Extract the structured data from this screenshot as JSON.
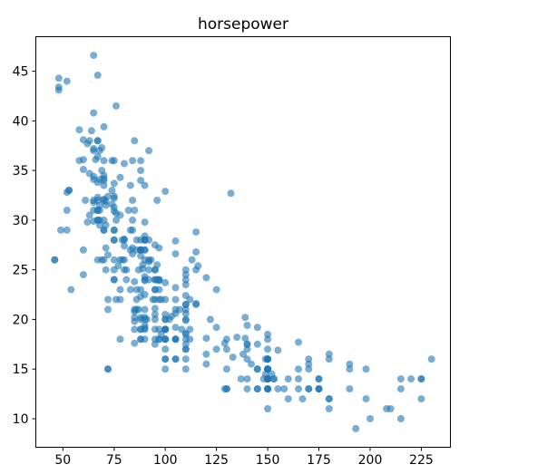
{
  "figure": {
    "title": "horsepower"
  },
  "chart_data": {
    "type": "scatter",
    "title": "horsepower",
    "xlabel": "",
    "ylabel": "",
    "xlim": [
      36.8,
      239.2
    ],
    "ylim": [
      7.12,
      48.48
    ],
    "x_ticks": [
      50,
      75,
      100,
      125,
      150,
      175,
      200,
      225
    ],
    "y_ticks": [
      10,
      15,
      20,
      25,
      30,
      35,
      40,
      45
    ],
    "grid": false,
    "legend_position": "none",
    "marker": {
      "color": "#1f77b4",
      "opacity": 0.6,
      "radius": 4
    },
    "points": [
      [
        130,
        18
      ],
      [
        165,
        15
      ],
      [
        150,
        18
      ],
      [
        150,
        16
      ],
      [
        140,
        17
      ],
      [
        198,
        15
      ],
      [
        220,
        14
      ],
      [
        215,
        14
      ],
      [
        225,
        14
      ],
      [
        190,
        15
      ],
      [
        170,
        15
      ],
      [
        160,
        14
      ],
      [
        150,
        15
      ],
      [
        225,
        14
      ],
      [
        95,
        24
      ],
      [
        95,
        22
      ],
      [
        97,
        18
      ],
      [
        85,
        21
      ],
      [
        88,
        27
      ],
      [
        46,
        26
      ],
      [
        87,
        25
      ],
      [
        90,
        24
      ],
      [
        95,
        25
      ],
      [
        113,
        26
      ],
      [
        90,
        21
      ],
      [
        215,
        10
      ],
      [
        200,
        10
      ],
      [
        210,
        11
      ],
      [
        193,
        9
      ],
      [
        88,
        27
      ],
      [
        90,
        28
      ],
      [
        95,
        25
      ],
      [
        100,
        19
      ],
      [
        105,
        16
      ],
      [
        100,
        17
      ],
      [
        88,
        19
      ],
      [
        100,
        18
      ],
      [
        165,
        14
      ],
      [
        175,
        14
      ],
      [
        153,
        14
      ],
      [
        150,
        14
      ],
      [
        180,
        12
      ],
      [
        170,
        13
      ],
      [
        175,
        13
      ],
      [
        110,
        18
      ],
      [
        72,
        22
      ],
      [
        100,
        19
      ],
      [
        88,
        18
      ],
      [
        86,
        23
      ],
      [
        90,
        28
      ],
      [
        70,
        30
      ],
      [
        76,
        30
      ],
      [
        65,
        31
      ],
      [
        69,
        35
      ],
      [
        60,
        27
      ],
      [
        70,
        26
      ],
      [
        95,
        24
      ],
      [
        80,
        25
      ],
      [
        54,
        23
      ],
      [
        90,
        20
      ],
      [
        86,
        21
      ],
      [
        165,
        13
      ],
      [
        175,
        14
      ],
      [
        150,
        15
      ],
      [
        153,
        14
      ],
      [
        150,
        17
      ],
      [
        208,
        11
      ],
      [
        155,
        13
      ],
      [
        160,
        12
      ],
      [
        190,
        13
      ],
      [
        97,
        19
      ],
      [
        150,
        15
      ],
      [
        130,
        13
      ],
      [
        140,
        13
      ],
      [
        150,
        14
      ],
      [
        112,
        18
      ],
      [
        76,
        22
      ],
      [
        87,
        21
      ],
      [
        69,
        26
      ],
      [
        86,
        22
      ],
      [
        92,
        28
      ],
      [
        97,
        23
      ],
      [
        80,
        28
      ],
      [
        88,
        27
      ],
      [
        175,
        13
      ],
      [
        150,
        14
      ],
      [
        145,
        13
      ],
      [
        137,
        14
      ],
      [
        150,
        15
      ],
      [
        198,
        12
      ],
      [
        150,
        13
      ],
      [
        158,
        13
      ],
      [
        150,
        14
      ],
      [
        215,
        13
      ],
      [
        225,
        12
      ],
      [
        175,
        13
      ],
      [
        105,
        18
      ],
      [
        100,
        16
      ],
      [
        100,
        18
      ],
      [
        88,
        18
      ],
      [
        95,
        23
      ],
      [
        46,
        26
      ],
      [
        150,
        11
      ],
      [
        167,
        12
      ],
      [
        170,
        13
      ],
      [
        180,
        12
      ],
      [
        100,
        18
      ],
      [
        88,
        20
      ],
      [
        72,
        21
      ],
      [
        94,
        22
      ],
      [
        90,
        18
      ],
      [
        85,
        19
      ],
      [
        107,
        21
      ],
      [
        90,
        26
      ],
      [
        145,
        15
      ],
      [
        230,
        16
      ],
      [
        49,
        29
      ],
      [
        75,
        24
      ],
      [
        91,
        20
      ],
      [
        112,
        19
      ],
      [
        150,
        15
      ],
      [
        110,
        24
      ],
      [
        122,
        20
      ],
      [
        180,
        11
      ],
      [
        95,
        20
      ],
      [
        100,
        19
      ],
      [
        100,
        15
      ],
      [
        67,
        31
      ],
      [
        80,
        26
      ],
      [
        65,
        32
      ],
      [
        75,
        25
      ],
      [
        100,
        16
      ],
      [
        110,
        16
      ],
      [
        105,
        18
      ],
      [
        140,
        16
      ],
      [
        150,
        13
      ],
      [
        150,
        14
      ],
      [
        140,
        14
      ],
      [
        150,
        14
      ],
      [
        83,
        29
      ],
      [
        67,
        26
      ],
      [
        78,
        26
      ],
      [
        52,
        31
      ],
      [
        61,
        32
      ],
      [
        75,
        28
      ],
      [
        75,
        24
      ],
      [
        75,
        26
      ],
      [
        97,
        24
      ],
      [
        93,
        26
      ],
      [
        67,
        31
      ],
      [
        95,
        19
      ],
      [
        105,
        18
      ],
      [
        72,
        15
      ],
      [
        72,
        15
      ],
      [
        170,
        16
      ],
      [
        145,
        15
      ],
      [
        150,
        16
      ],
      [
        148,
        14
      ],
      [
        110,
        17
      ],
      [
        105,
        16
      ],
      [
        110,
        15
      ],
      [
        95,
        18
      ],
      [
        110,
        21
      ],
      [
        110,
        20
      ],
      [
        129,
        13
      ],
      [
        75,
        29
      ],
      [
        83,
        23
      ],
      [
        100,
        20
      ],
      [
        78,
        23
      ],
      [
        96,
        24
      ],
      [
        71,
        25
      ],
      [
        97,
        24
      ],
      [
        97,
        18
      ],
      [
        70,
        29
      ],
      [
        90,
        19
      ],
      [
        95,
        23
      ],
      [
        88,
        23
      ],
      [
        98,
        22
      ],
      [
        115,
        25
      ],
      [
        53,
        33
      ],
      [
        86,
        28
      ],
      [
        81,
        25
      ],
      [
        92,
        25
      ],
      [
        79,
        26
      ],
      [
        83,
        27
      ],
      [
        140,
        17.5
      ],
      [
        150,
        16
      ],
      [
        120,
        15.5
      ],
      [
        152,
        14.5
      ],
      [
        100,
        22
      ],
      [
        105,
        22
      ],
      [
        81,
        24
      ],
      [
        90,
        22.5
      ],
      [
        52,
        29
      ],
      [
        60,
        24.5
      ],
      [
        70,
        29
      ],
      [
        53,
        33
      ],
      [
        100,
        20
      ],
      [
        78,
        18
      ],
      [
        110,
        18.5
      ],
      [
        95,
        17.5
      ],
      [
        71,
        29.5
      ],
      [
        70,
        32
      ],
      [
        75,
        28
      ],
      [
        72,
        26.5
      ],
      [
        102,
        20
      ],
      [
        150,
        13
      ],
      [
        88,
        19
      ],
      [
        108,
        19
      ],
      [
        120,
        16.5
      ],
      [
        180,
        16.5
      ],
      [
        145,
        13
      ],
      [
        130,
        13
      ],
      [
        150,
        13
      ],
      [
        68,
        31.5
      ],
      [
        83,
        33.5
      ],
      [
        63,
        30.5
      ],
      [
        67,
        30
      ],
      [
        78,
        30.5
      ],
      [
        97,
        22
      ],
      [
        110,
        21.5
      ],
      [
        110,
        21.5
      ],
      [
        100,
        19
      ],
      [
        98,
        18.5
      ],
      [
        145,
        17.5
      ],
      [
        150,
        16
      ],
      [
        170,
        15.5
      ],
      [
        149,
        14.5
      ],
      [
        78,
        22
      ],
      [
        110,
        24.5
      ],
      [
        75,
        29
      ],
      [
        89,
        25.5
      ],
      [
        180,
        16
      ],
      [
        149,
        16
      ],
      [
        130,
        15
      ],
      [
        110,
        17.5
      ],
      [
        105,
        21
      ],
      [
        58,
        36
      ],
      [
        96,
        25.5
      ],
      [
        70,
        33.5
      ],
      [
        110,
        17
      ],
      [
        190,
        15.5
      ],
      [
        60,
        36.1
      ],
      [
        52,
        32.8
      ],
      [
        70,
        39.4
      ],
      [
        66,
        36.1
      ],
      [
        110,
        19.9
      ],
      [
        140,
        19.4
      ],
      [
        139,
        20.2
      ],
      [
        105,
        19.2
      ],
      [
        95,
        20.5
      ],
      [
        85,
        20.2
      ],
      [
        89,
        25.1
      ],
      [
        100,
        20.5
      ],
      [
        90,
        19.4
      ],
      [
        105,
        20.6
      ],
      [
        85,
        20.8
      ],
      [
        110,
        18.6
      ],
      [
        120,
        18.1
      ],
      [
        145,
        19.2
      ],
      [
        165,
        17.7
      ],
      [
        139,
        18.1
      ],
      [
        140,
        17.5
      ],
      [
        68,
        30
      ],
      [
        95,
        27.5
      ],
      [
        97,
        27.2
      ],
      [
        75,
        30.9
      ],
      [
        95,
        21.1
      ],
      [
        105,
        23.2
      ],
      [
        85,
        23.8
      ],
      [
        97,
        23.9
      ],
      [
        103,
        20.3
      ],
      [
        125,
        17
      ],
      [
        115,
        21.6
      ],
      [
        133,
        16.2
      ],
      [
        71,
        31.5
      ],
      [
        68,
        29.5
      ],
      [
        48,
        43.1
      ],
      [
        115,
        21.5
      ],
      [
        85,
        19.8
      ],
      [
        88,
        22.3
      ],
      [
        90,
        20.2
      ],
      [
        110,
        20.6
      ],
      [
        130,
        17
      ],
      [
        129,
        17.6
      ],
      [
        138,
        16.5
      ],
      [
        135,
        18.2
      ],
      [
        155,
        16.9
      ],
      [
        142,
        15.5
      ],
      [
        125,
        19.2
      ],
      [
        150,
        18.5
      ],
      [
        71,
        31.9
      ],
      [
        65,
        34.1
      ],
      [
        80,
        35.7
      ],
      [
        80,
        27.4
      ],
      [
        77,
        25.4
      ],
      [
        125,
        23
      ],
      [
        71,
        27.2
      ],
      [
        90,
        23.9
      ],
      [
        70,
        34.2
      ],
      [
        70,
        34.5
      ],
      [
        65,
        31.8
      ],
      [
        69,
        37.3
      ],
      [
        90,
        28.4
      ],
      [
        115,
        28.8
      ],
      [
        115,
        26.8
      ],
      [
        90,
        33.5
      ],
      [
        76,
        41.5
      ],
      [
        60,
        38.1
      ],
      [
        70,
        32.1
      ],
      [
        65,
        37.2
      ],
      [
        90,
        28
      ],
      [
        88,
        26.4
      ],
      [
        90,
        24.3
      ],
      [
        90,
        19.1
      ],
      [
        78,
        34.3
      ],
      [
        90,
        29.8
      ],
      [
        75,
        31.3
      ],
      [
        92,
        37
      ],
      [
        75,
        32.2
      ],
      [
        65,
        46.6
      ],
      [
        105,
        27.9
      ],
      [
        65,
        40.8
      ],
      [
        48,
        44.3
      ],
      [
        48,
        43.4
      ],
      [
        67,
        36.4
      ],
      [
        67,
        30
      ],
      [
        67,
        44.6
      ],
      [
        67,
        33.8
      ],
      [
        62,
        29.8
      ],
      [
        132,
        32.7
      ],
      [
        100,
        23.7
      ],
      [
        88,
        35
      ],
      [
        72,
        32.4
      ],
      [
        84,
        27.2
      ],
      [
        84,
        26.6
      ],
      [
        92,
        25.8
      ],
      [
        110,
        23.5
      ],
      [
        84,
        30
      ],
      [
        58,
        39.1
      ],
      [
        64,
        39
      ],
      [
        60,
        35.1
      ],
      [
        67,
        32.3
      ],
      [
        65,
        37
      ],
      [
        62,
        37.7
      ],
      [
        68,
        34.1
      ],
      [
        63,
        34.7
      ],
      [
        65,
        34.4
      ],
      [
        65,
        29.9
      ],
      [
        74,
        33
      ],
      [
        75,
        33.7
      ],
      [
        75,
        32.4
      ],
      [
        100,
        32.9
      ],
      [
        74,
        31.6
      ],
      [
        80,
        28.1
      ],
      [
        76,
        30.7
      ],
      [
        116,
        25.4
      ],
      [
        120,
        24.2
      ],
      [
        110,
        22.4
      ],
      [
        105,
        26.6
      ],
      [
        88,
        20.2
      ],
      [
        85,
        17.6
      ],
      [
        88,
        28
      ],
      [
        88,
        27
      ],
      [
        88,
        34
      ],
      [
        85,
        31
      ],
      [
        84,
        29
      ],
      [
        90,
        27
      ],
      [
        92,
        24
      ],
      [
        74,
        36
      ],
      [
        68,
        37
      ],
      [
        68,
        31
      ],
      [
        63,
        38
      ],
      [
        70,
        36
      ],
      [
        88,
        36
      ],
      [
        75,
        36
      ],
      [
        70,
        34
      ],
      [
        67,
        38
      ],
      [
        67,
        32
      ],
      [
        67,
        38
      ],
      [
        110,
        25
      ],
      [
        85,
        38
      ],
      [
        92,
        26
      ],
      [
        112,
        22
      ],
      [
        96,
        32
      ],
      [
        84,
        36
      ],
      [
        90,
        27
      ],
      [
        86,
        27
      ],
      [
        52,
        44
      ],
      [
        84,
        32
      ],
      [
        79,
        28
      ],
      [
        82,
        31
      ]
    ]
  }
}
